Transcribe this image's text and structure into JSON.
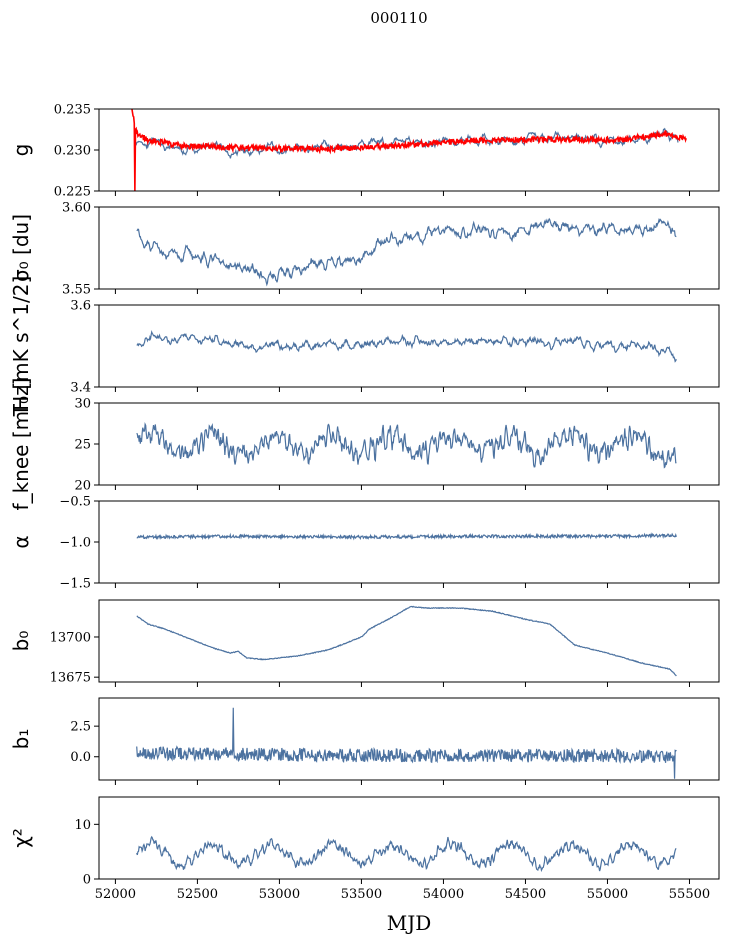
{
  "figure": {
    "title": "000110",
    "xlabel": "MJD"
  },
  "colors": {
    "series": "#4c72a0",
    "reference": "#ff0000",
    "frame": "#000000"
  },
  "chart_data": [
    {
      "type": "line",
      "id": "g",
      "ylabel": "g",
      "xlim": [
        51900,
        55680
      ],
      "ylim": [
        0.225,
        0.235
      ],
      "yticks": [
        0.225,
        0.23,
        0.235
      ],
      "ytick_labels": [
        "0.225",
        "0.230",
        "0.235"
      ],
      "grid": false,
      "series": [
        {
          "key": "fit",
          "color": "#4c72a0",
          "noise": 0.00085,
          "smooth": 5,
          "points": [
            [
              52120,
              0.2312
            ],
            [
              52300,
              0.23
            ],
            [
              52600,
              0.2303
            ],
            [
              52800,
              0.2298
            ],
            [
              53000,
              0.2302
            ],
            [
              53300,
              0.2303
            ],
            [
              53500,
              0.2306
            ],
            [
              53800,
              0.231
            ],
            [
              54100,
              0.231
            ],
            [
              54400,
              0.2312
            ],
            [
              54700,
              0.2315
            ],
            [
              55000,
              0.231
            ],
            [
              55200,
              0.2312
            ],
            [
              55380,
              0.2322
            ],
            [
              55430,
              0.2318
            ]
          ]
        },
        {
          "key": "reference",
          "color": "#ff0000",
          "noise": 0.00035,
          "smooth": 1,
          "points": [
            [
              52100,
              0.235
            ],
            [
              52130,
              0.232
            ],
            [
              52200,
              0.2312
            ],
            [
              52400,
              0.2305
            ],
            [
              52700,
              0.2303
            ],
            [
              53000,
              0.2302
            ],
            [
              53300,
              0.2301
            ],
            [
              53600,
              0.2304
            ],
            [
              53900,
              0.2308
            ],
            [
              54200,
              0.2312
            ],
            [
              54500,
              0.2313
            ],
            [
              54800,
              0.2313
            ],
            [
              55100,
              0.2312
            ],
            [
              55350,
              0.232
            ],
            [
              55450,
              0.2315
            ],
            [
              55480,
              0.2311
            ]
          ],
          "spikes": [
            [
              52120,
              0.225
            ]
          ]
        }
      ]
    },
    {
      "type": "line",
      "id": "sigma0",
      "ylabel": "σ₀ [du]",
      "xlim": [
        51900,
        55680
      ],
      "ylim": [
        3.55,
        3.6
      ],
      "yticks": [
        3.55,
        3.6
      ],
      "ytick_labels": [
        "3.55",
        "3.60"
      ],
      "grid": false,
      "series": [
        {
          "key": "sigma0",
          "color": "#4c72a0",
          "noise": 0.0045,
          "smooth": 3,
          "points": [
            [
              52130,
              3.585
            ],
            [
              52200,
              3.575
            ],
            [
              52400,
              3.57
            ],
            [
              52600,
              3.567
            ],
            [
              52800,
              3.562
            ],
            [
              52950,
              3.558
            ],
            [
              53100,
              3.562
            ],
            [
              53300,
              3.565
            ],
            [
              53500,
              3.57
            ],
            [
              53600,
              3.578
            ],
            [
              53800,
              3.582
            ],
            [
              54000,
              3.584
            ],
            [
              54200,
              3.586
            ],
            [
              54400,
              3.583
            ],
            [
              54600,
              3.59
            ],
            [
              54800,
              3.586
            ],
            [
              55000,
              3.587
            ],
            [
              55200,
              3.585
            ],
            [
              55350,
              3.59
            ],
            [
              55420,
              3.584
            ]
          ]
        }
      ]
    },
    {
      "type": "line",
      "id": "T0",
      "ylabel": "T₀ [mK s^1/2]",
      "xlim": [
        51900,
        55680
      ],
      "ylim": [
        3.4,
        3.6
      ],
      "yticks": [
        3.4,
        3.6
      ],
      "ytick_labels": [
        "3.4",
        "3.6"
      ],
      "grid": false,
      "series": [
        {
          "key": "T0",
          "color": "#4c72a0",
          "noise": 0.016,
          "smooth": 4,
          "points": [
            [
              52130,
              3.51
            ],
            [
              52400,
              3.52
            ],
            [
              52800,
              3.5
            ],
            [
              53200,
              3.5
            ],
            [
              53600,
              3.51
            ],
            [
              54000,
              3.51
            ],
            [
              54400,
              3.51
            ],
            [
              54800,
              3.51
            ],
            [
              55200,
              3.5
            ],
            [
              55420,
              3.48
            ]
          ]
        }
      ]
    },
    {
      "type": "line",
      "id": "fknee",
      "ylabel": "f_knee [mHz]",
      "xlim": [
        51900,
        55680
      ],
      "ylim": [
        20,
        30
      ],
      "yticks": [
        20,
        25,
        30
      ],
      "ytick_labels": [
        "20",
        "25",
        "30"
      ],
      "grid": false,
      "series": [
        {
          "key": "fknee",
          "color": "#4c72a0",
          "noise": 1.5,
          "smooth": 2,
          "periodic": [
            1.0,
            365
          ],
          "points": [
            [
              52130,
              25.2
            ],
            [
              52800,
              24.8
            ],
            [
              53500,
              25.0
            ],
            [
              54200,
              25.0
            ],
            [
              54900,
              24.8
            ],
            [
              55420,
              24.5
            ]
          ]
        }
      ]
    },
    {
      "type": "line",
      "id": "alpha",
      "ylabel": "α",
      "xlim": [
        51900,
        55680
      ],
      "ylim": [
        -1.5,
        -0.5
      ],
      "yticks": [
        -1.5,
        -1.0,
        -0.5
      ],
      "ytick_labels": [
        "−1.5",
        "−1.0",
        "−0.5"
      ],
      "grid": false,
      "series": [
        {
          "key": "alpha",
          "color": "#4c72a0",
          "noise": 0.018,
          "smooth": 1,
          "points": [
            [
              52130,
              -0.94
            ],
            [
              52800,
              -0.93
            ],
            [
              53500,
              -0.94
            ],
            [
              54200,
              -0.93
            ],
            [
              54900,
              -0.93
            ],
            [
              55420,
              -0.92
            ]
          ]
        }
      ]
    },
    {
      "type": "line",
      "id": "b0",
      "ylabel": "b₀",
      "xlim": [
        51900,
        55680
      ],
      "ylim": [
        13672,
        13723
      ],
      "yticks": [
        13675,
        13700
      ],
      "ytick_labels": [
        "13675",
        "13700"
      ],
      "grid": false,
      "series": [
        {
          "key": "b0",
          "color": "#4c72a0",
          "noise": 0.25,
          "smooth": 1,
          "points": [
            [
              52130,
              13713
            ],
            [
              52200,
              13708
            ],
            [
              52300,
              13705
            ],
            [
              52500,
              13697
            ],
            [
              52600,
              13693
            ],
            [
              52700,
              13690
            ],
            [
              52750,
              13691
            ],
            [
              52800,
              13687
            ],
            [
              52900,
              13686
            ],
            [
              53100,
              13688
            ],
            [
              53300,
              13692
            ],
            [
              53500,
              13700
            ],
            [
              53550,
              13705
            ],
            [
              53700,
              13713
            ],
            [
              53800,
              13719
            ],
            [
              53900,
              13718
            ],
            [
              54100,
              13718
            ],
            [
              54300,
              13716
            ],
            [
              54500,
              13711
            ],
            [
              54650,
              13708
            ],
            [
              54800,
              13695
            ],
            [
              55000,
              13690
            ],
            [
              55200,
              13684
            ],
            [
              55380,
              13680
            ],
            [
              55420,
              13676
            ]
          ]
        }
      ]
    },
    {
      "type": "line",
      "id": "b1",
      "ylabel": "b₁",
      "xlim": [
        51900,
        55680
      ],
      "ylim": [
        -1.9,
        4.8
      ],
      "yticks": [
        0.0,
        2.5
      ],
      "ytick_labels": [
        "0.0",
        "2.5"
      ],
      "grid": false,
      "series": [
        {
          "key": "b1",
          "color": "#4c72a0",
          "noise": 0.55,
          "smooth": 1,
          "points": [
            [
              52130,
              0.3
            ],
            [
              52800,
              0.2
            ],
            [
              53500,
              0.1
            ],
            [
              54200,
              0.1
            ],
            [
              54900,
              0.1
            ],
            [
              55420,
              0.0
            ]
          ],
          "spikes": [
            [
              52720,
              4.0
            ],
            [
              55410,
              -1.8
            ]
          ]
        }
      ]
    },
    {
      "type": "line",
      "id": "chi2",
      "ylabel": "χ²",
      "xlim": [
        51900,
        55680
      ],
      "ylim": [
        0,
        15
      ],
      "yticks": [
        0,
        10
      ],
      "ytick_labels": [
        "0",
        "10"
      ],
      "xticks": [
        52000,
        52500,
        53000,
        53500,
        54000,
        54500,
        55000,
        55500
      ],
      "xtick_labels": [
        "52000",
        "52500",
        "53000",
        "53500",
        "54000",
        "54500",
        "55000",
        "55500"
      ],
      "grid": false,
      "series": [
        {
          "key": "chi2",
          "color": "#4c72a0",
          "noise": 1.1,
          "smooth": 2,
          "periodic": [
            1.8,
            365
          ],
          "points": [
            [
              52130,
              4.5
            ],
            [
              52800,
              4.6
            ],
            [
              53500,
              4.5
            ],
            [
              54200,
              4.6
            ],
            [
              54900,
              4.4
            ],
            [
              55420,
              4.5
            ]
          ]
        }
      ]
    }
  ]
}
